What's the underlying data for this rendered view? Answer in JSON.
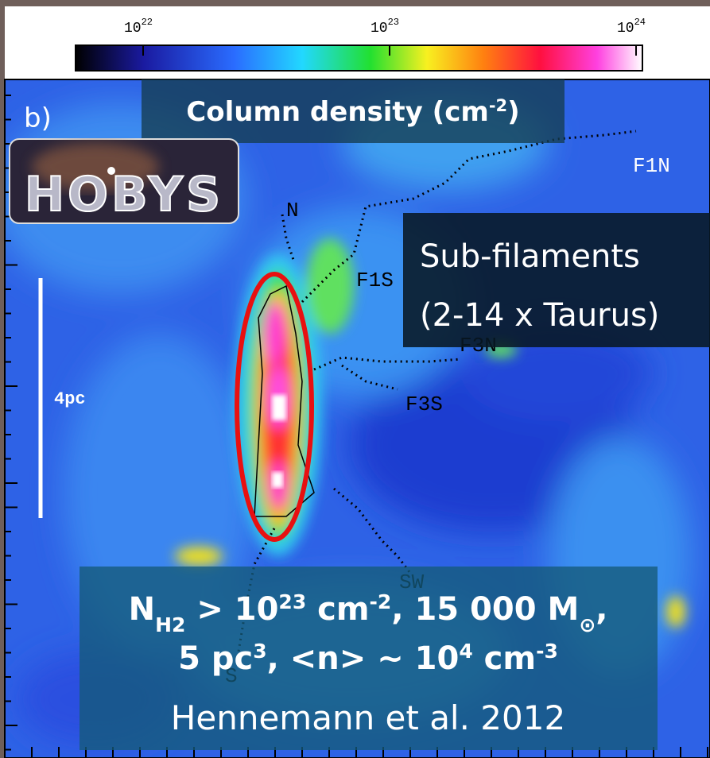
{
  "colorbar": {
    "ticks": [
      {
        "base": "10",
        "exp": "22"
      },
      {
        "base": "10",
        "exp": "23"
      },
      {
        "base": "10",
        "exp": "24"
      }
    ]
  },
  "panel_label": "b)",
  "title": [
    {
      "text": "Column density (cm"
    },
    {
      "sup": "-2"
    },
    {
      "text": ")"
    }
  ],
  "logo": "HOBYS",
  "filament_labels": [
    "N",
    "F1S",
    "F1N",
    "F3N",
    "F3S",
    "SW",
    "S"
  ],
  "scale_bar": "4pc",
  "subfilaments": [
    "Sub-filaments",
    "(2-14 x Taurus)"
  ],
  "summary": {
    "lines": [
      [
        {
          "text": "N"
        },
        {
          "sub": "H2"
        },
        {
          "text": " > 10"
        },
        {
          "sup": "23"
        },
        {
          "text": " cm"
        },
        {
          "sup": "-2"
        },
        {
          "text": ", 15 000 M"
        },
        {
          "sub": "⊙"
        },
        {
          "text": ","
        }
      ],
      [
        {
          "text": "5 pc"
        },
        {
          "sup": "3"
        },
        {
          "text": ", <n> ~ 10"
        },
        {
          "sup": "4"
        },
        {
          "text": " cm"
        },
        {
          "sup": "-3"
        }
      ]
    ],
    "reference": "Hennemann et al. 2012"
  }
}
